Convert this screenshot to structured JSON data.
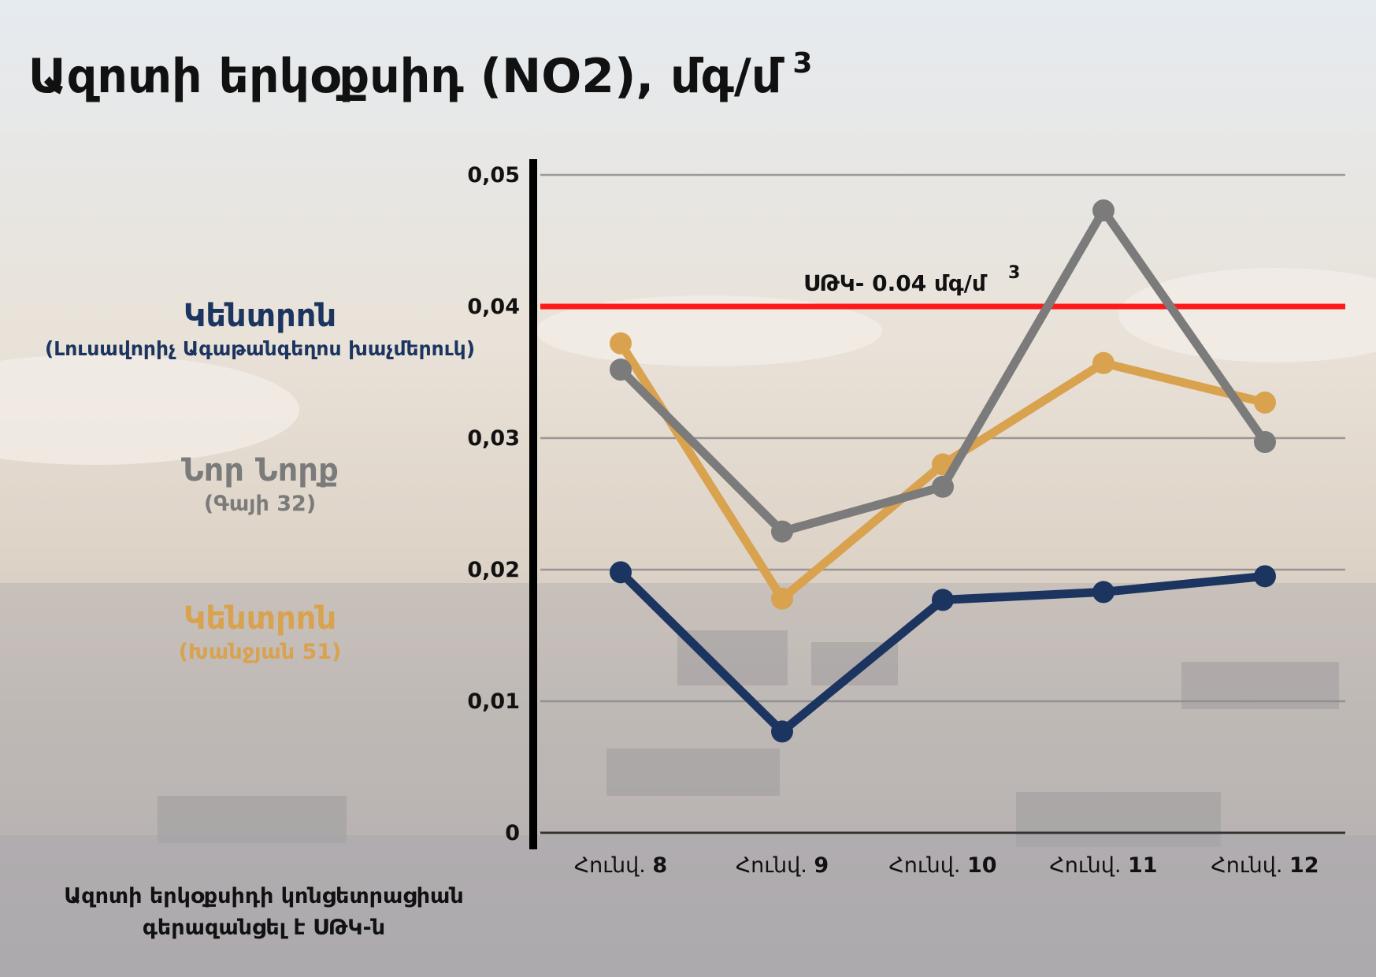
{
  "title": {
    "text": "Ազոտի երկօքսիդ (NO2), մգ/մ",
    "sup": "3"
  },
  "legend": [
    {
      "name": "Կենտրոն",
      "sub": "(Լուսավորիչ Ագաթանգեղոս խաչմերուկ)",
      "color": "#1c3560"
    },
    {
      "name": "Նոր Նորք",
      "sub": "(Գայի 32)",
      "color": "#7b7b7b"
    },
    {
      "name": "Կենտրոն",
      "sub": "(Խանջյան 51)",
      "color": "#d9a24f"
    }
  ],
  "caption": [
    "Ազոտի երկօքսիդի կոնցետրացիան",
    "գերազանցել է ՍԹԿ-ն"
  ],
  "chart_data": {
    "type": "line",
    "categories": [
      {
        "prefix": "Հունվ. ",
        "num": "8"
      },
      {
        "prefix": "Հունվ. ",
        "num": "9"
      },
      {
        "prefix": "Հունվ. ",
        "num": "10"
      },
      {
        "prefix": "Հունվ. ",
        "num": "11"
      },
      {
        "prefix": "Հունվ. ",
        "num": "12"
      }
    ],
    "ylim": [
      0,
      0.05
    ],
    "yticks": [
      "0",
      "0,01",
      "0,02",
      "0,03",
      "0,04",
      "0,05"
    ],
    "grid": true,
    "series": [
      {
        "key": "kentron_lusavorich",
        "color": "#1c3560",
        "values": [
          0.0198,
          0.0077,
          0.0177,
          0.0183,
          0.0195
        ]
      },
      {
        "key": "kentron_khanjyan",
        "color": "#d9a24f",
        "values": [
          0.0372,
          0.0178,
          0.028,
          0.0357,
          0.0327
        ]
      },
      {
        "key": "nor_nork",
        "color": "#7b7b7b",
        "values": [
          0.0352,
          0.0229,
          0.0263,
          0.0473,
          0.0297
        ]
      }
    ],
    "threshold": {
      "value": 0.04,
      "color": "#ff1a1a",
      "label": "ՍԹԿ- 0.04 մգ/մ",
      "label_sup": "3"
    }
  }
}
